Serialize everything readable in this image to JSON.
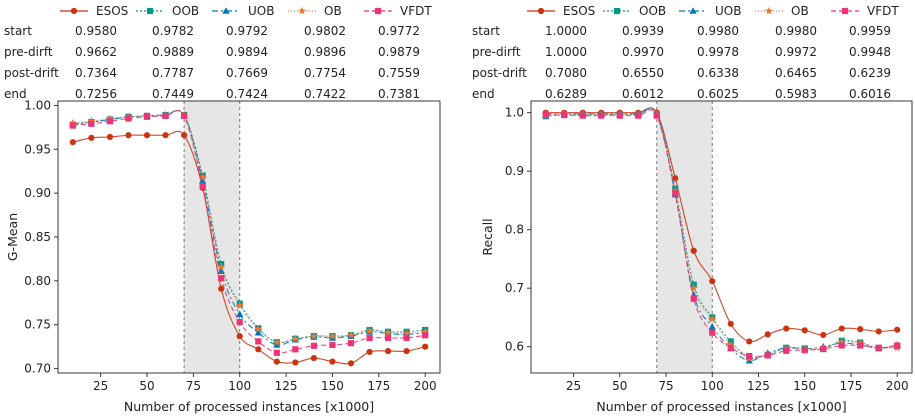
{
  "chart_data": [
    {
      "type": "line",
      "ylabel": "G-Mean",
      "xlabel": "Number of processed instances [x1000]",
      "xlim": [
        2,
        208
      ],
      "ylim": [
        0.695,
        1.005
      ],
      "xticks": [
        25,
        50,
        75,
        100,
        125,
        150,
        175,
        200
      ],
      "yticks": [
        0.7,
        0.75,
        0.8,
        0.85,
        0.9,
        0.95,
        1.0
      ],
      "ytick_labels": [
        "0.70",
        "0.75",
        "0.80",
        "0.85",
        "0.90",
        "0.95",
        "1.00"
      ],
      "drift_region": [
        70,
        100
      ],
      "grid": false,
      "table": {
        "headers": [
          "ESOS",
          "OOB",
          "UOB",
          "OB",
          "VFDT"
        ],
        "rows": [
          {
            "label": "start",
            "values": [
              "0.9580",
              "0.9782",
              "0.9792",
              "0.9802",
              "0.9772"
            ]
          },
          {
            "label": "pre-dirft",
            "values": [
              "0.9662",
              "0.9889",
              "0.9894",
              "0.9896",
              "0.9879"
            ]
          },
          {
            "label": "post-drift",
            "values": [
              "0.7364",
              "0.7787",
              "0.7669",
              "0.7754",
              "0.7559"
            ]
          },
          {
            "label": "end",
            "values": [
              "0.7256",
              "0.7449",
              "0.7424",
              "0.7422",
              "0.7381"
            ]
          }
        ]
      },
      "series": [
        {
          "name": "ESOS",
          "color": "#cc3311",
          "dash": "",
          "marker": "circle",
          "x": [
            10,
            20,
            30,
            40,
            50,
            60,
            70,
            80,
            90,
            100,
            110,
            120,
            130,
            140,
            150,
            160,
            170,
            180,
            190,
            200
          ],
          "y": [
            0.958,
            0.963,
            0.964,
            0.966,
            0.966,
            0.966,
            0.966,
            0.906,
            0.791,
            0.737,
            0.722,
            0.708,
            0.707,
            0.712,
            0.708,
            0.706,
            0.719,
            0.72,
            0.72,
            0.725
          ]
        },
        {
          "name": "OOB",
          "color": "#009988",
          "dash": "2,2",
          "marker": "square",
          "x": [
            10,
            20,
            30,
            40,
            50,
            60,
            70,
            80,
            90,
            100,
            110,
            120,
            130,
            140,
            150,
            160,
            170,
            180,
            190,
            200
          ],
          "y": [
            0.978,
            0.981,
            0.984,
            0.987,
            0.988,
            0.989,
            0.989,
            0.92,
            0.819,
            0.774,
            0.746,
            0.73,
            0.734,
            0.737,
            0.737,
            0.738,
            0.744,
            0.742,
            0.742,
            0.744
          ]
        },
        {
          "name": "UOB",
          "color": "#0077bb",
          "dash": "6,3,2,3",
          "marker": "triangle",
          "x": [
            10,
            20,
            30,
            40,
            50,
            60,
            70,
            80,
            90,
            100,
            110,
            120,
            130,
            140,
            150,
            160,
            170,
            180,
            190,
            200
          ],
          "y": [
            0.979,
            0.981,
            0.984,
            0.987,
            0.988,
            0.989,
            0.989,
            0.914,
            0.811,
            0.762,
            0.741,
            0.727,
            0.733,
            0.736,
            0.735,
            0.737,
            0.742,
            0.74,
            0.739,
            0.741
          ]
        },
        {
          "name": "OB",
          "color": "#ee7733",
          "dash": "1,2",
          "marker": "star",
          "x": [
            10,
            20,
            30,
            40,
            50,
            60,
            70,
            80,
            90,
            100,
            110,
            120,
            130,
            140,
            150,
            160,
            170,
            180,
            190,
            200
          ],
          "y": [
            0.98,
            0.982,
            0.985,
            0.987,
            0.988,
            0.989,
            0.989,
            0.918,
            0.816,
            0.772,
            0.745,
            0.73,
            0.734,
            0.737,
            0.737,
            0.738,
            0.743,
            0.741,
            0.74,
            0.742
          ]
        },
        {
          "name": "VFDT",
          "color": "#ee3377",
          "dash": "5,3",
          "marker": "square",
          "x": [
            10,
            20,
            30,
            40,
            50,
            60,
            70,
            80,
            90,
            100,
            110,
            120,
            130,
            140,
            150,
            160,
            170,
            180,
            190,
            200
          ],
          "y": [
            0.977,
            0.979,
            0.982,
            0.985,
            0.987,
            0.988,
            0.988,
            0.908,
            0.803,
            0.753,
            0.731,
            0.718,
            0.722,
            0.726,
            0.727,
            0.729,
            0.735,
            0.735,
            0.735,
            0.738
          ]
        }
      ]
    },
    {
      "type": "line",
      "ylabel": "Recall",
      "xlabel": "Number of processed instances [x1000]",
      "xlim": [
        2,
        208
      ],
      "ylim": [
        0.555,
        1.02
      ],
      "xticks": [
        25,
        50,
        75,
        100,
        125,
        150,
        175,
        200
      ],
      "yticks": [
        0.6,
        0.7,
        0.8,
        0.9,
        1.0
      ],
      "ytick_labels": [
        "0.6",
        "0.7",
        "0.8",
        "0.9",
        "1.0"
      ],
      "drift_region": [
        70,
        100
      ],
      "grid": false,
      "table": {
        "headers": [
          "ESOS",
          "OOB",
          "UOB",
          "OB",
          "VFDT"
        ],
        "rows": [
          {
            "label": "start",
            "values": [
              "1.0000",
              "0.9939",
              "0.9980",
              "0.9980",
              "0.9959"
            ]
          },
          {
            "label": "pre-dirft",
            "values": [
              "1.0000",
              "0.9970",
              "0.9978",
              "0.9972",
              "0.9948"
            ]
          },
          {
            "label": "post-drift",
            "values": [
              "0.7080",
              "0.6550",
              "0.6338",
              "0.6465",
              "0.6239"
            ]
          },
          {
            "label": "end",
            "values": [
              "0.6289",
              "0.6012",
              "0.6025",
              "0.5983",
              "0.6016"
            ]
          }
        ]
      },
      "series": [
        {
          "name": "ESOS",
          "color": "#cc3311",
          "dash": "",
          "marker": "circle",
          "x": [
            10,
            20,
            30,
            40,
            50,
            60,
            70,
            80,
            90,
            100,
            110,
            120,
            130,
            140,
            150,
            160,
            170,
            180,
            190,
            200
          ],
          "y": [
            1.0,
            1.0,
            1.0,
            1.0,
            1.0,
            1.0,
            1.0,
            0.888,
            0.764,
            0.712,
            0.639,
            0.609,
            0.621,
            0.631,
            0.628,
            0.62,
            0.631,
            0.63,
            0.626,
            0.629
          ]
        },
        {
          "name": "OOB",
          "color": "#009988",
          "dash": "2,2",
          "marker": "square",
          "x": [
            10,
            20,
            30,
            40,
            50,
            60,
            70,
            80,
            90,
            100,
            110,
            120,
            130,
            140,
            150,
            160,
            170,
            180,
            190,
            200
          ],
          "y": [
            0.994,
            0.996,
            0.996,
            0.997,
            0.997,
            0.997,
            0.997,
            0.87,
            0.706,
            0.65,
            0.609,
            0.582,
            0.586,
            0.598,
            0.597,
            0.596,
            0.61,
            0.607,
            0.598,
            0.601
          ]
        },
        {
          "name": "UOB",
          "color": "#0077bb",
          "dash": "6,3,2,3",
          "marker": "triangle",
          "x": [
            10,
            20,
            30,
            40,
            50,
            60,
            70,
            80,
            90,
            100,
            110,
            120,
            130,
            140,
            150,
            160,
            170,
            180,
            190,
            200
          ],
          "y": [
            0.998,
            0.998,
            0.998,
            0.998,
            0.998,
            0.998,
            0.998,
            0.86,
            0.688,
            0.634,
            0.597,
            0.576,
            0.589,
            0.598,
            0.596,
            0.6,
            0.606,
            0.603,
            0.597,
            0.603
          ]
        },
        {
          "name": "OB",
          "color": "#ee7733",
          "dash": "1,2",
          "marker": "star",
          "x": [
            10,
            20,
            30,
            40,
            50,
            60,
            70,
            80,
            90,
            100,
            110,
            120,
            130,
            140,
            150,
            160,
            170,
            180,
            190,
            200
          ],
          "y": [
            0.998,
            0.998,
            0.998,
            0.997,
            0.997,
            0.997,
            0.997,
            0.866,
            0.7,
            0.647,
            0.603,
            0.58,
            0.586,
            0.597,
            0.596,
            0.598,
            0.608,
            0.606,
            0.597,
            0.598
          ]
        },
        {
          "name": "VFDT",
          "color": "#ee3377",
          "dash": "5,3",
          "marker": "square",
          "x": [
            10,
            20,
            30,
            40,
            50,
            60,
            70,
            80,
            90,
            100,
            110,
            120,
            130,
            140,
            150,
            160,
            170,
            180,
            190,
            200
          ],
          "y": [
            0.996,
            0.996,
            0.995,
            0.995,
            0.995,
            0.995,
            0.995,
            0.862,
            0.682,
            0.624,
            0.598,
            0.584,
            0.585,
            0.593,
            0.594,
            0.596,
            0.602,
            0.602,
            0.598,
            0.602
          ]
        }
      ]
    }
  ]
}
